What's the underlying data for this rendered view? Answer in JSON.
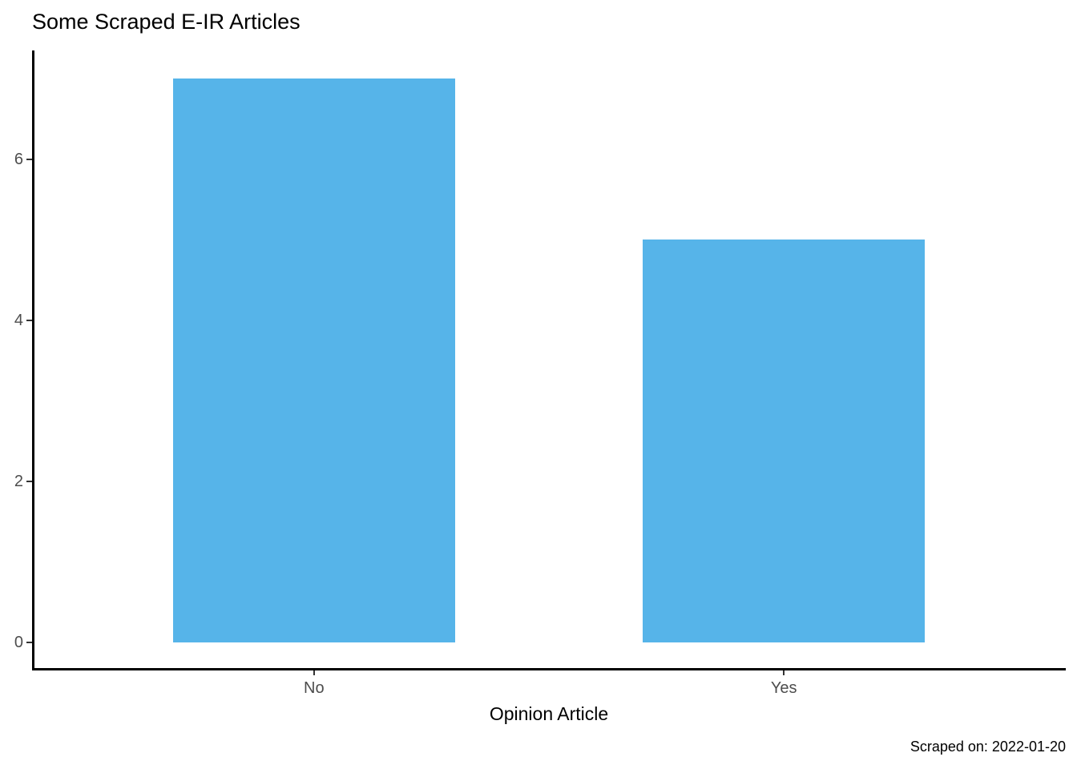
{
  "title": "Some Scraped E-IR Articles",
  "caption": "Scraped on: 2022-01-20",
  "colors": {
    "bar_fill": "#56B4E9",
    "axis_line": "#000000",
    "tick_label": "#4d4d4d",
    "title_text": "#000000"
  },
  "chart_data": {
    "type": "bar",
    "categories": [
      "No",
      "Yes"
    ],
    "values": [
      7,
      5
    ],
    "title": "Some Scraped E-IR Articles",
    "xlabel": "Opinion Article",
    "ylabel": "",
    "caption": "Scraped on: 2022-01-20",
    "y_ticks": [
      0,
      2,
      4,
      6
    ],
    "ylim": [
      -0.35,
      7.35
    ],
    "x_range": [
      0.4,
      2.6
    ],
    "bar_width_units": 0.6,
    "legend": "none",
    "grid": false,
    "bar_color": "#56B4E9"
  }
}
